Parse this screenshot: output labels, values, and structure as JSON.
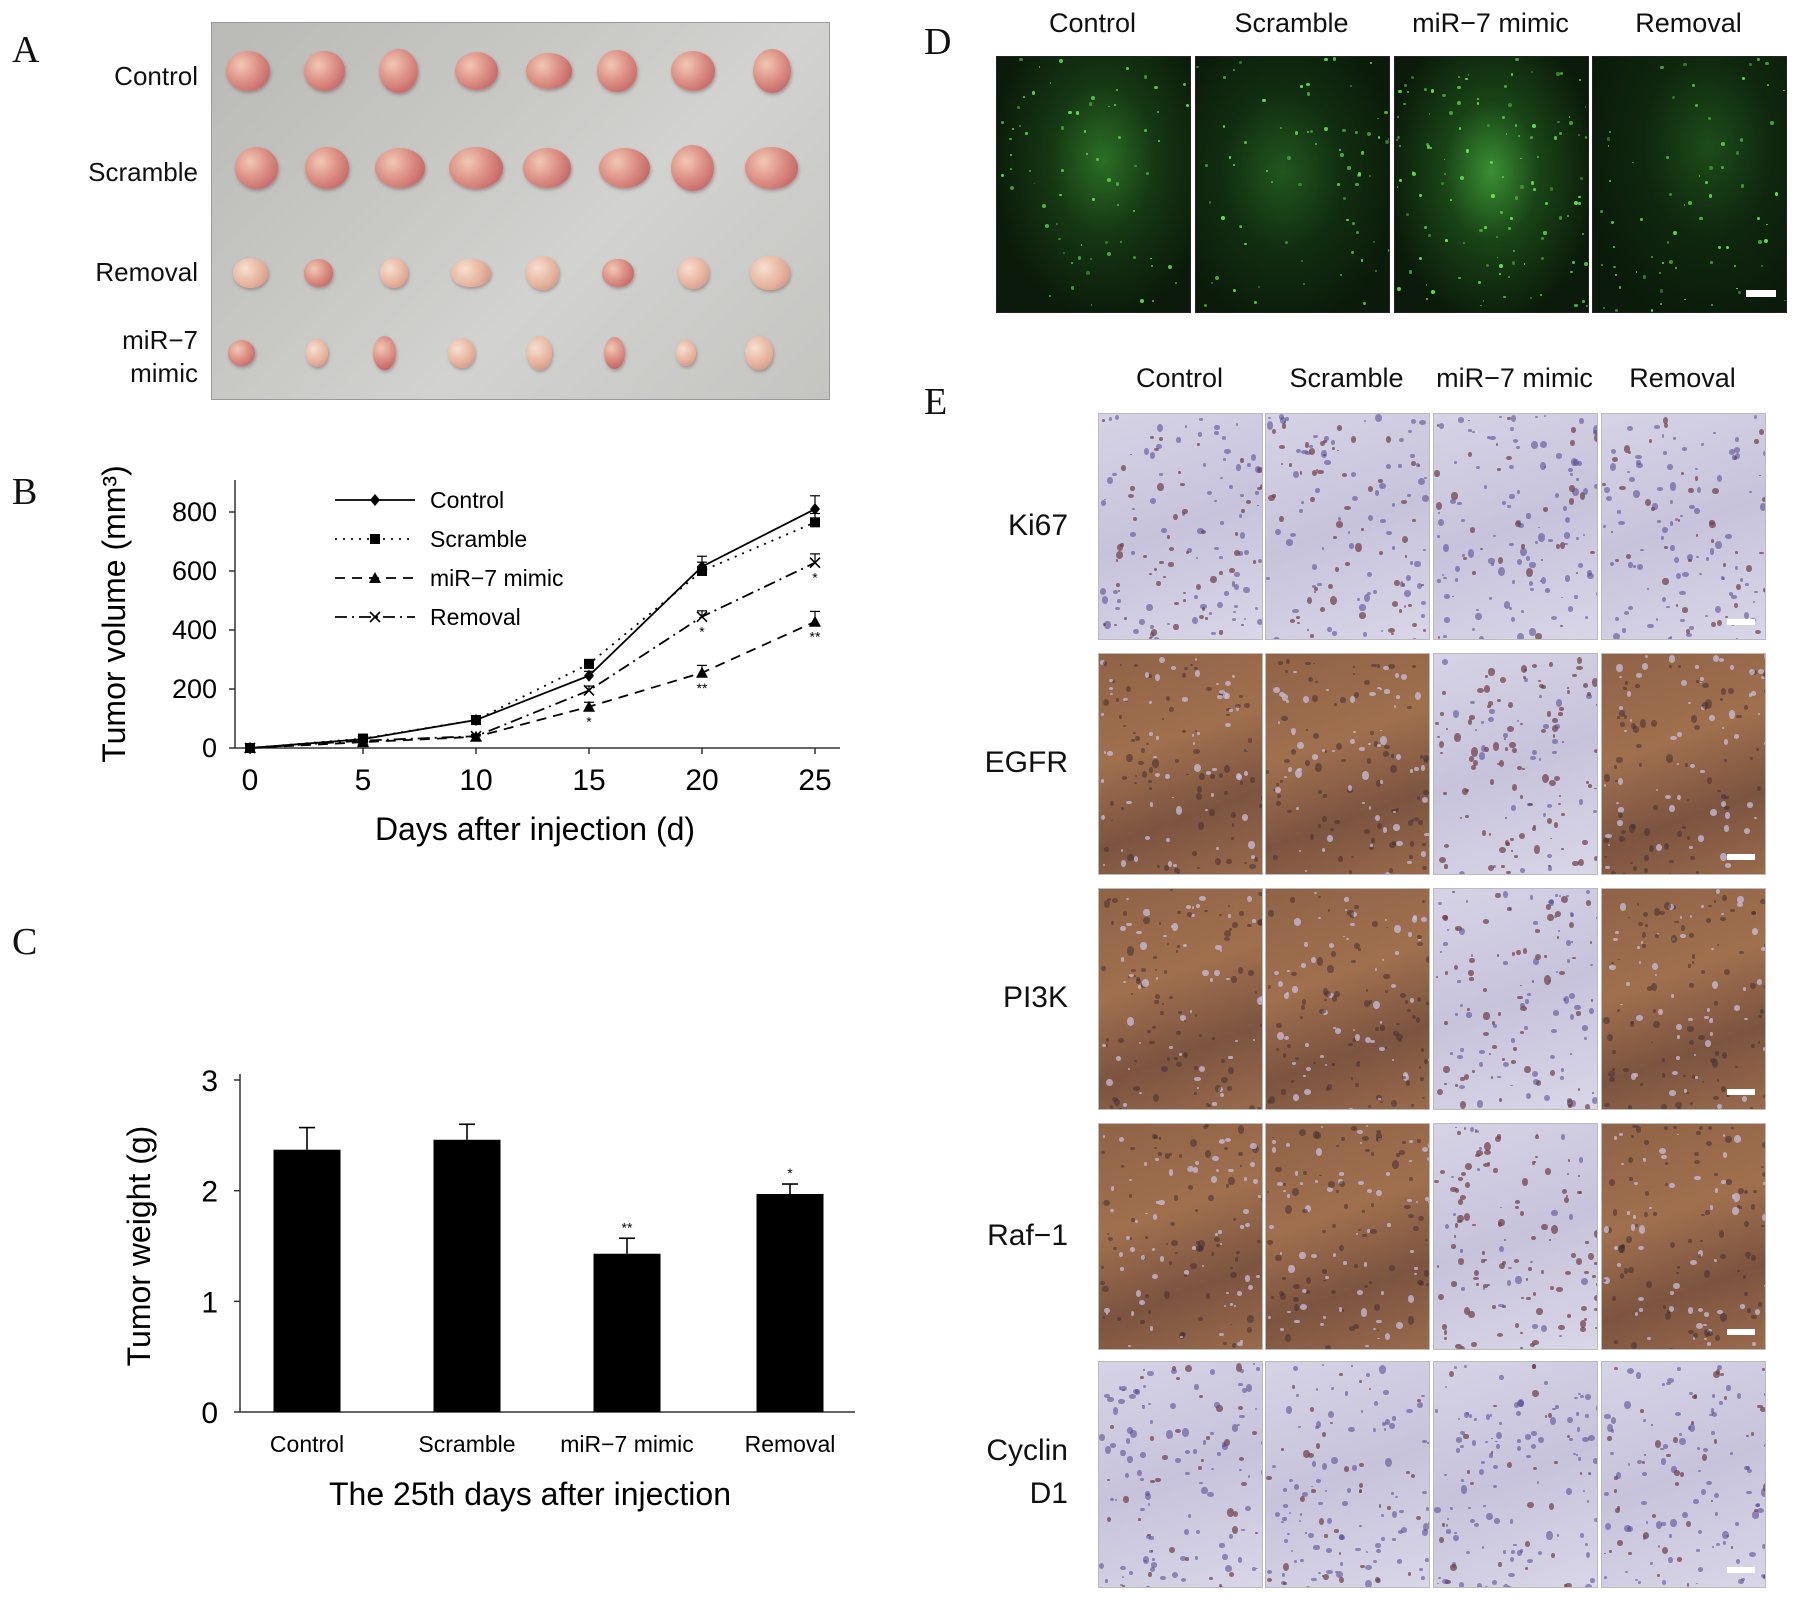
{
  "panels": {
    "a": {
      "letter": "A",
      "rows": [
        "Control",
        "Scramble",
        "Removal",
        "miR−7\nmimic"
      ]
    },
    "b": {
      "letter": "B"
    },
    "c": {
      "letter": "C"
    },
    "d": {
      "letter": "D",
      "columns": [
        "Control",
        "Scramble",
        "miR−7 mimic",
        "Removal"
      ]
    },
    "e": {
      "letter": "E",
      "columns": [
        "Control",
        "Scramble",
        "miR−7 mimic",
        "Removal"
      ],
      "rows": [
        "Ki67",
        "EGFR",
        "PI3K",
        "Raf−1",
        "Cyclin\nD1"
      ],
      "stain_colors": {
        "weak": "#c9c6dd",
        "strong": "#8a5a3c",
        "hematoxylin": "#5b4f8c"
      }
    }
  },
  "chart_data": [
    {
      "id": "B",
      "type": "line",
      "xlabel": "Days after injection (d)",
      "ylabel": "Tumor volume (mm³)",
      "x": [
        0,
        5,
        10,
        15,
        20,
        25
      ],
      "xticks": [
        "0",
        "5",
        "10",
        "15",
        "20",
        "25"
      ],
      "yticks": [
        "0",
        "200",
        "400",
        "600",
        "800"
      ],
      "xlim": [
        0,
        25
      ],
      "ylim": [
        0,
        800
      ],
      "legend_position": "top-left",
      "grid": false,
      "series": [
        {
          "name": "Control",
          "marker": "diamond",
          "dash": "solid",
          "values": [
            0,
            30,
            95,
            245,
            615,
            810
          ],
          "errors": [
            0,
            5,
            8,
            15,
            35,
            45
          ]
        },
        {
          "name": "Scramble",
          "marker": "square",
          "dash": "dotted",
          "values": [
            0,
            32,
            95,
            285,
            600,
            765
          ],
          "errors": [
            0,
            5,
            8,
            15,
            30,
            30
          ]
        },
        {
          "name": "miR−7 mimic",
          "marker": "triangle",
          "dash": "dashed",
          "values": [
            0,
            20,
            38,
            140,
            255,
            428
          ],
          "errors": [
            0,
            4,
            6,
            15,
            25,
            35
          ],
          "significance": [
            "",
            "",
            "",
            "*",
            "**",
            "**"
          ]
        },
        {
          "name": "Removal",
          "marker": "x",
          "dash": "dashdot",
          "values": [
            0,
            25,
            40,
            195,
            445,
            628
          ],
          "errors": [
            0,
            4,
            6,
            15,
            20,
            30
          ],
          "significance": [
            "",
            "",
            "",
            "",
            "*",
            "*"
          ]
        }
      ]
    },
    {
      "id": "C",
      "type": "bar",
      "xlabel": "The 25th days after injection",
      "ylabel": "Tumor weight (g)",
      "categories": [
        "Control",
        "Scramble",
        "miR−7 mimic",
        "Removal"
      ],
      "values": [
        2.37,
        2.46,
        1.43,
        1.97
      ],
      "errors": [
        0.2,
        0.14,
        0.14,
        0.09
      ],
      "significance": [
        "",
        "",
        "**",
        "*"
      ],
      "yticks": [
        "0",
        "1",
        "2",
        "3"
      ],
      "ylim": [
        0,
        3
      ],
      "bar_color": "#000000",
      "grid": false
    }
  ]
}
